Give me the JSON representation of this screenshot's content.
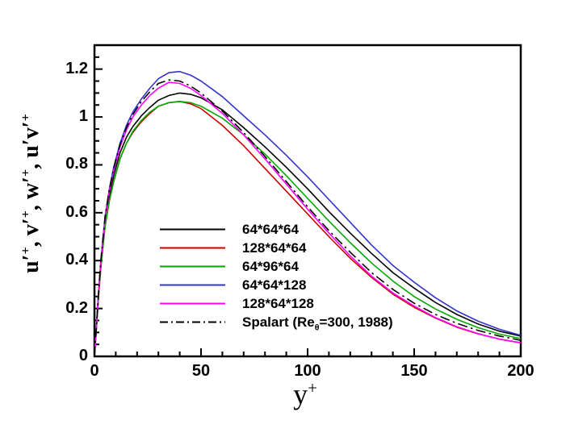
{
  "chart_data": {
    "type": "line",
    "title": "",
    "xlabel": "y{^+}",
    "ylabel": "u′{^+}, v′{^+}, w′{^+}, u′v′{^+}",
    "xlim": [
      0,
      200
    ],
    "ylim": [
      0,
      1.3
    ],
    "grid": false,
    "legend_position": "inside-bottom-center",
    "x_major_ticks": [
      0,
      50,
      100,
      150,
      200
    ],
    "x_minor_tick_step": 10,
    "y_major_ticks": [
      0,
      0.2,
      0.4,
      0.6,
      0.8,
      1,
      1.2
    ],
    "y_minor_tick_step": 0.05,
    "x_tick_labels": [
      "0",
      "50",
      "100",
      "150",
      "200"
    ],
    "y_tick_labels": [
      "0",
      "0.2",
      "0.4",
      "0.6",
      "0.8",
      "1",
      "1.2"
    ],
    "x": [
      0,
      1,
      2,
      3,
      5,
      7,
      9,
      12,
      15,
      18,
      22,
      26,
      30,
      35,
      40,
      45,
      50,
      60,
      70,
      80,
      90,
      100,
      110,
      120,
      130,
      140,
      150,
      160,
      170,
      180,
      190,
      200
    ],
    "series": [
      {
        "id": "64-64-64",
        "name": "64*64*64",
        "label": "64*64*64",
        "color": "#000000",
        "style": "solid",
        "values": [
          0,
          0.13,
          0.27,
          0.38,
          0.56,
          0.67,
          0.755,
          0.85,
          0.915,
          0.96,
          1.005,
          1.04,
          1.07,
          1.09,
          1.1,
          1.095,
          1.08,
          1.03,
          0.955,
          0.875,
          0.79,
          0.7,
          0.605,
          0.515,
          0.43,
          0.35,
          0.285,
          0.225,
          0.175,
          0.135,
          0.105,
          0.085
        ]
      },
      {
        "id": "128-64-64",
        "name": "128*64*64",
        "label": "128*64*64",
        "color": "#cc0000",
        "style": "solid",
        "values": [
          0,
          0.125,
          0.26,
          0.37,
          0.545,
          0.65,
          0.73,
          0.825,
          0.89,
          0.935,
          0.98,
          1.015,
          1.045,
          1.06,
          1.065,
          1.055,
          1.035,
          0.965,
          0.88,
          0.785,
          0.69,
          0.595,
          0.5,
          0.41,
          0.33,
          0.26,
          0.205,
          0.16,
          0.122,
          0.094,
          0.072,
          0.057
        ]
      },
      {
        "id": "64-96-64",
        "name": "64*96*64",
        "label": "64*96*64",
        "color": "#00aa00",
        "style": "solid",
        "values": [
          0,
          0.125,
          0.26,
          0.37,
          0.545,
          0.65,
          0.73,
          0.825,
          0.89,
          0.94,
          0.985,
          1.02,
          1.045,
          1.06,
          1.065,
          1.06,
          1.045,
          0.995,
          0.925,
          0.845,
          0.755,
          0.66,
          0.565,
          0.475,
          0.39,
          0.315,
          0.25,
          0.198,
          0.155,
          0.12,
          0.093,
          0.074
        ]
      },
      {
        "id": "64-64-128",
        "name": "64*64*128",
        "label": "64*64*128",
        "color": "#3333cc",
        "style": "solid",
        "values": [
          0,
          0.135,
          0.28,
          0.4,
          0.585,
          0.7,
          0.79,
          0.89,
          0.965,
          1.02,
          1.075,
          1.12,
          1.16,
          1.185,
          1.19,
          1.175,
          1.15,
          1.085,
          1.005,
          0.925,
          0.84,
          0.75,
          0.655,
          0.56,
          0.465,
          0.38,
          0.31,
          0.245,
          0.19,
          0.147,
          0.113,
          0.088
        ]
      },
      {
        "id": "128-64-128",
        "name": "128*64*128",
        "label": "128*64*128",
        "color": "#ff00ff",
        "style": "solid",
        "values": [
          0,
          0.13,
          0.275,
          0.39,
          0.575,
          0.69,
          0.775,
          0.875,
          0.945,
          1.0,
          1.05,
          1.09,
          1.12,
          1.145,
          1.14,
          1.12,
          1.09,
          1.015,
          0.925,
          0.825,
          0.72,
          0.615,
          0.515,
          0.42,
          0.335,
          0.265,
          0.21,
          0.162,
          0.124,
          0.095,
          0.072,
          0.056
        ]
      },
      {
        "id": "spalart",
        "name": "Spalart (Reθ=300, 1988)",
        "label": "Spalart (Re{_θ}=300, 1988)",
        "color": "#000000",
        "style": "dashdot",
        "values": [
          0,
          0.135,
          0.28,
          0.4,
          0.585,
          0.7,
          0.785,
          0.885,
          0.955,
          1.01,
          1.065,
          1.105,
          1.14,
          1.155,
          1.15,
          1.13,
          1.1,
          1.025,
          0.935,
          0.835,
          0.73,
          0.625,
          0.525,
          0.435,
          0.35,
          0.28,
          0.222,
          0.175,
          0.138,
          0.108,
          0.085,
          0.067
        ]
      }
    ]
  },
  "colors": {
    "axis": "#000000",
    "background": "#ffffff"
  }
}
